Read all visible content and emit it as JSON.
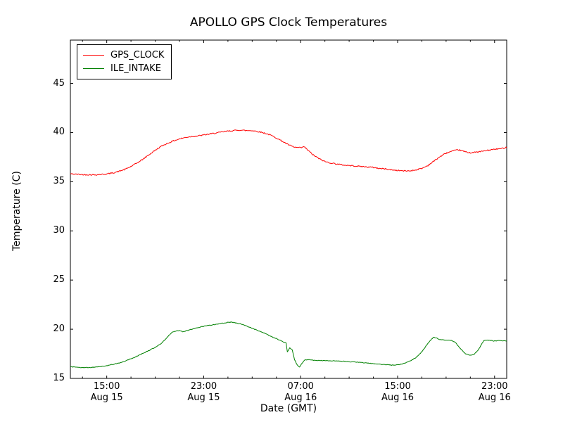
{
  "chart_data": {
    "type": "line",
    "title": "APOLLO GPS Clock Temperatures",
    "xlabel": "Date (GMT)",
    "ylabel": "Temperature (C)",
    "x_unit": "hours since Aug 15 12:00 GMT",
    "xlim": [
      0,
      36
    ],
    "ylim": [
      15,
      49.4
    ],
    "grid": false,
    "legend_position": "upper left",
    "yticks": [
      15,
      20,
      25,
      30,
      35,
      40,
      45
    ],
    "xticks": [
      {
        "t": 3,
        "time": "15:00",
        "date": "Aug 15"
      },
      {
        "t": 11,
        "time": "23:00",
        "date": "Aug 15"
      },
      {
        "t": 19,
        "time": "07:00",
        "date": "Aug 16"
      },
      {
        "t": 27,
        "time": "15:00",
        "date": "Aug 16"
      },
      {
        "t": 35,
        "time": "23:00",
        "date": "Aug 16"
      }
    ],
    "minor_xticks": [
      1,
      5,
      7,
      9,
      13,
      15,
      17,
      21,
      23,
      25,
      29,
      31,
      33
    ],
    "series": [
      {
        "name": "GPS_CLOCK",
        "color": "#ff0000",
        "noise": 0.06,
        "points": [
          [
            0,
            35.8
          ],
          [
            1,
            35.72
          ],
          [
            2,
            35.7
          ],
          [
            3,
            35.78
          ],
          [
            3.5,
            35.9
          ],
          [
            4,
            36.05
          ],
          [
            4.5,
            36.25
          ],
          [
            5,
            36.55
          ],
          [
            5.5,
            36.9
          ],
          [
            6,
            37.3
          ],
          [
            6.5,
            37.75
          ],
          [
            7,
            38.2
          ],
          [
            7.5,
            38.6
          ],
          [
            8,
            38.9
          ],
          [
            8.5,
            39.15
          ],
          [
            9,
            39.35
          ],
          [
            9.5,
            39.5
          ],
          [
            10,
            39.6
          ],
          [
            10.5,
            39.65
          ],
          [
            11,
            39.75
          ],
          [
            11.5,
            39.85
          ],
          [
            12,
            39.95
          ],
          [
            12.5,
            40.05
          ],
          [
            13,
            40.15
          ],
          [
            13.5,
            40.2
          ],
          [
            14,
            40.25
          ],
          [
            14.5,
            40.2
          ],
          [
            15,
            40.2
          ],
          [
            15.5,
            40.1
          ],
          [
            16,
            39.95
          ],
          [
            16.5,
            39.75
          ],
          [
            17,
            39.45
          ],
          [
            17.5,
            39.1
          ],
          [
            18,
            38.75
          ],
          [
            18.5,
            38.5
          ],
          [
            19,
            38.45
          ],
          [
            19.3,
            38.55
          ],
          [
            19.6,
            38.2
          ],
          [
            20,
            37.75
          ],
          [
            20.5,
            37.35
          ],
          [
            21,
            37.05
          ],
          [
            21.5,
            36.9
          ],
          [
            22,
            36.8
          ],
          [
            22.5,
            36.7
          ],
          [
            23,
            36.65
          ],
          [
            23.5,
            36.6
          ],
          [
            24,
            36.55
          ],
          [
            24.5,
            36.5
          ],
          [
            25,
            36.45
          ],
          [
            25.5,
            36.35
          ],
          [
            26,
            36.3
          ],
          [
            26.5,
            36.2
          ],
          [
            27,
            36.15
          ],
          [
            27.5,
            36.1
          ],
          [
            28,
            36.1
          ],
          [
            28.5,
            36.2
          ],
          [
            29,
            36.35
          ],
          [
            29.5,
            36.65
          ],
          [
            30,
            37.1
          ],
          [
            30.5,
            37.55
          ],
          [
            31,
            37.9
          ],
          [
            31.5,
            38.1
          ],
          [
            32,
            38.25
          ],
          [
            32.3,
            38.15
          ],
          [
            32.7,
            38.0
          ],
          [
            33,
            37.95
          ],
          [
            33.5,
            38.0
          ],
          [
            34,
            38.1
          ],
          [
            34.5,
            38.2
          ],
          [
            35,
            38.3
          ],
          [
            35.5,
            38.35
          ],
          [
            36,
            38.5
          ]
        ]
      },
      {
        "name": "ILE_INTAKE",
        "color": "#008000",
        "noise": 0.03,
        "points": [
          [
            0,
            16.2
          ],
          [
            0.5,
            16.12
          ],
          [
            1,
            16.1
          ],
          [
            1.5,
            16.1
          ],
          [
            2,
            16.15
          ],
          [
            2.5,
            16.2
          ],
          [
            3,
            16.3
          ],
          [
            3.5,
            16.42
          ],
          [
            4,
            16.55
          ],
          [
            4.5,
            16.75
          ],
          [
            5,
            17.0
          ],
          [
            5.5,
            17.25
          ],
          [
            6,
            17.55
          ],
          [
            6.5,
            17.85
          ],
          [
            7,
            18.15
          ],
          [
            7.5,
            18.55
          ],
          [
            8,
            19.2
          ],
          [
            8.3,
            19.6
          ],
          [
            8.6,
            19.8
          ],
          [
            9,
            19.85
          ],
          [
            9.3,
            19.75
          ],
          [
            9.6,
            19.85
          ],
          [
            10,
            20.0
          ],
          [
            10.5,
            20.15
          ],
          [
            11,
            20.3
          ],
          [
            11.5,
            20.4
          ],
          [
            12,
            20.5
          ],
          [
            12.5,
            20.6
          ],
          [
            13,
            20.7
          ],
          [
            13.3,
            20.72
          ],
          [
            13.6,
            20.65
          ],
          [
            14,
            20.55
          ],
          [
            14.5,
            20.35
          ],
          [
            15,
            20.1
          ],
          [
            15.5,
            19.85
          ],
          [
            16,
            19.6
          ],
          [
            16.5,
            19.3
          ],
          [
            17,
            19.05
          ],
          [
            17.5,
            18.75
          ],
          [
            17.8,
            18.6
          ],
          [
            17.9,
            17.7
          ],
          [
            18.1,
            18.1
          ],
          [
            18.3,
            17.9
          ],
          [
            18.5,
            16.9
          ],
          [
            18.7,
            16.4
          ],
          [
            18.9,
            16.15
          ],
          [
            19.1,
            16.5
          ],
          [
            19.3,
            16.85
          ],
          [
            19.6,
            16.9
          ],
          [
            20,
            16.85
          ],
          [
            21,
            16.8
          ],
          [
            22,
            16.78
          ],
          [
            23,
            16.7
          ],
          [
            24,
            16.62
          ],
          [
            24.5,
            16.55
          ],
          [
            25,
            16.5
          ],
          [
            25.5,
            16.45
          ],
          [
            26,
            16.4
          ],
          [
            26.5,
            16.35
          ],
          [
            27,
            16.38
          ],
          [
            27.3,
            16.45
          ],
          [
            27.7,
            16.6
          ],
          [
            28,
            16.75
          ],
          [
            28.5,
            17.1
          ],
          [
            29,
            17.7
          ],
          [
            29.4,
            18.4
          ],
          [
            29.8,
            19.0
          ],
          [
            30,
            19.2
          ],
          [
            30.2,
            19.1
          ],
          [
            30.5,
            18.95
          ],
          [
            31,
            18.9
          ],
          [
            31.5,
            18.85
          ],
          [
            31.8,
            18.6
          ],
          [
            32.2,
            18.0
          ],
          [
            32.6,
            17.5
          ],
          [
            33,
            17.35
          ],
          [
            33.3,
            17.45
          ],
          [
            33.6,
            17.8
          ],
          [
            33.9,
            18.4
          ],
          [
            34.1,
            18.85
          ],
          [
            34.4,
            18.9
          ],
          [
            34.7,
            18.85
          ],
          [
            35,
            18.8
          ],
          [
            35.5,
            18.85
          ],
          [
            36,
            18.8
          ]
        ]
      }
    ]
  }
}
